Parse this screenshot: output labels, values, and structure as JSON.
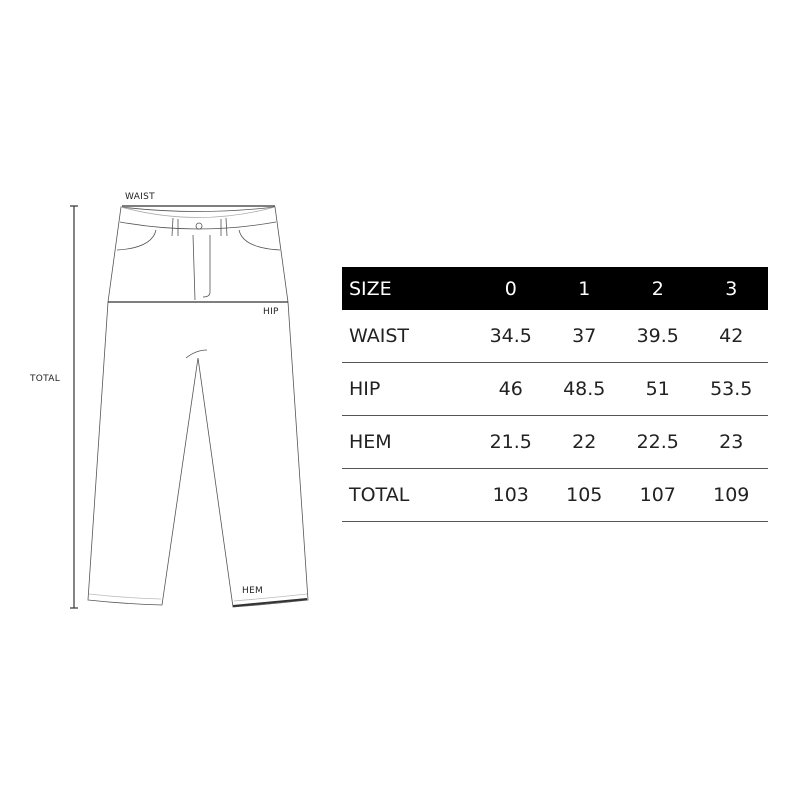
{
  "diagram": {
    "labels": {
      "waist": "WAIST",
      "hip": "HIP",
      "hem": "HEM",
      "total": "TOTAL"
    }
  },
  "table": {
    "header": [
      "SIZE",
      "0",
      "1",
      "2",
      "3"
    ],
    "rows": [
      [
        "WAIST",
        "34.5",
        "37",
        "39.5",
        "42"
      ],
      [
        "HIP",
        "46",
        "48.5",
        "51",
        "53.5"
      ],
      [
        "HEM",
        "21.5",
        "22",
        "22.5",
        "23"
      ],
      [
        "TOTAL",
        "103",
        "105",
        "107",
        "109"
      ]
    ]
  }
}
